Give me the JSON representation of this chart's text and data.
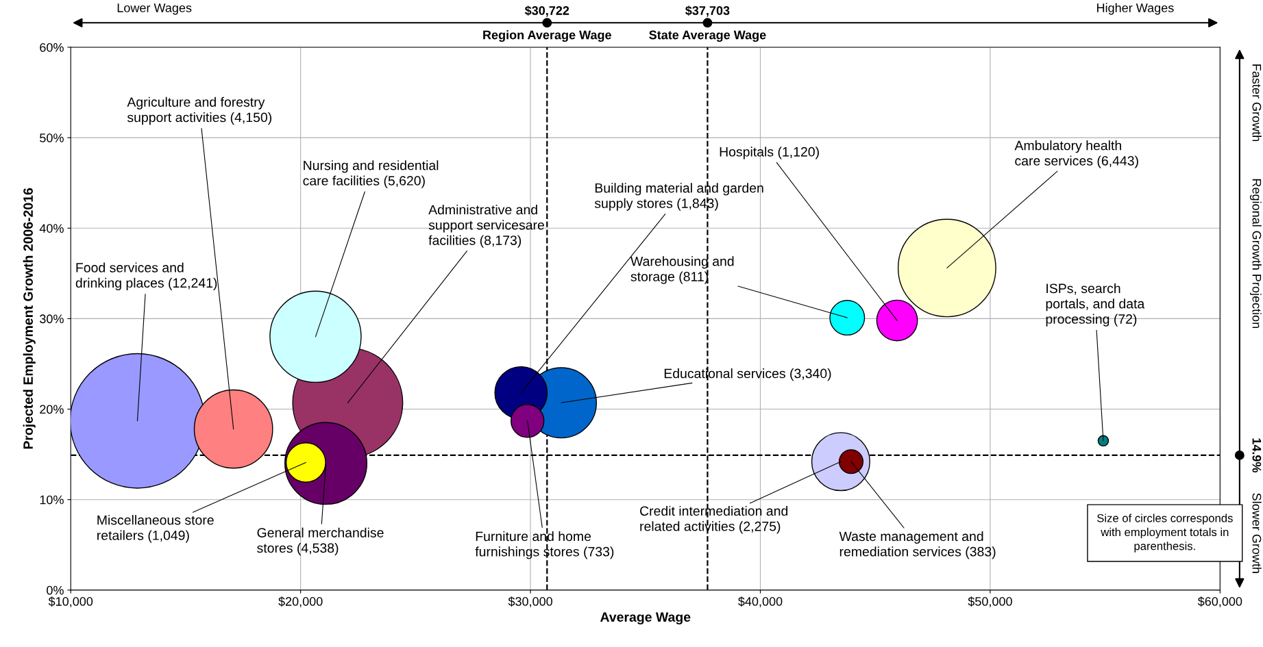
{
  "chart_data": {
    "type": "bubble",
    "xlabel": "Average Wage",
    "ylabel": "Projected Employment Growth 2006-2016",
    "x": [
      12900,
      22050,
      48120,
      20650,
      21100,
      17080,
      31340,
      43500,
      29590,
      45950,
      20230,
      43780,
      29870,
      43950,
      54920
    ],
    "values": [
      18.7,
      20.7,
      35.6,
      28.0,
      14.0,
      17.8,
      20.7,
      14.2,
      21.8,
      29.8,
      14.1,
      30.1,
      18.7,
      14.2,
      16.5
    ],
    "sizes": [
      1,
      0.668,
      0.526,
      0.459,
      0.371,
      0.339,
      0.273,
      0.186,
      0.151,
      0.0915,
      0.0857,
      0.0663,
      0.0599,
      0.0313,
      0.0059
    ],
    "colors": [
      "#9999ff",
      "#993366",
      "#ffffcc",
      "#ccffff",
      "#660066",
      "#ff8080",
      "#0066cc",
      "#ccccff",
      "#000080",
      "#ff00ff",
      "#ffff00",
      "#00ffff",
      "#800080",
      "#800000",
      "#008080"
    ],
    "marker": "circle",
    "xlim": [
      10000,
      60000
    ],
    "ylim": [
      0,
      60
    ],
    "xticks": [
      {
        "value": 10000,
        "label": "$10,000"
      },
      {
        "value": 20000,
        "label": "$20,000"
      },
      {
        "value": 30000,
        "label": "$30,000"
      },
      {
        "value": 40000,
        "label": "$40,000"
      },
      {
        "value": 50000,
        "label": "$50,000"
      },
      {
        "value": 60000,
        "label": "$60,000"
      }
    ],
    "yticks": [
      {
        "value": 0,
        "label": "0%"
      },
      {
        "value": 10,
        "label": "10%"
      },
      {
        "value": 20,
        "label": "20%"
      },
      {
        "value": 30,
        "label": "30%"
      },
      {
        "value": 40,
        "label": "40%"
      },
      {
        "value": 50,
        "label": "50%"
      },
      {
        "value": 60,
        "label": "60%"
      }
    ],
    "grid": true,
    "ref_lines": [
      {
        "axis": "x",
        "value": 30722,
        "label": "Region Average Wage",
        "color": "#000000",
        "line_style": "dashed"
      },
      {
        "axis": "x",
        "value": 37703,
        "label": "State Average Wage",
        "color": "#000000",
        "line_style": "dashed"
      },
      {
        "axis": "y",
        "value": 14.9,
        "label": "14.9%",
        "color": "#000000",
        "line_style": "dashed"
      }
    ],
    "annotations": [
      {
        "text": "Food services and\ndrinking places (12,241)",
        "x": 12900,
        "y": 18.7
      },
      {
        "text": "Administrative and\nsupport servicesare\nfacilities (8,173)",
        "x": 22050,
        "y": 20.7
      },
      {
        "text": "Ambulatory health\ncare services (6,443)",
        "x": 48120,
        "y": 35.6
      },
      {
        "text": "Nursing and residential\ncare facilities (5,620)",
        "x": 20650,
        "y": 28.0
      },
      {
        "text": "General merchandise\nstores (4,538)",
        "x": 21100,
        "y": 14.0
      },
      {
        "text": "Agriculture and forestry\nsupport activities (4,150)",
        "x": 17080,
        "y": 17.8
      },
      {
        "text": "Educational services (3,340)",
        "x": 31340,
        "y": 20.7
      },
      {
        "text": "Credit intermediation and\nrelated activities (2,275)",
        "x": 43500,
        "y": 14.2
      },
      {
        "text": "Building material and garden\nsupply stores (1,843)",
        "x": 29590,
        "y": 21.8
      },
      {
        "text": "Hospitals (1,120)",
        "x": 45950,
        "y": 29.8
      },
      {
        "text": "Miscellaneous store\nretailers (1,049)",
        "x": 20230,
        "y": 14.1
      },
      {
        "text": "Warehousing and\nstorage (811)",
        "x": 43780,
        "y": 30.1
      },
      {
        "text": "Furniture and home\nfurnishings stores (733)",
        "x": 29870,
        "y": 18.7
      },
      {
        "text": "Waste management and\nremediation services (383)",
        "x": 43950,
        "y": 14.2
      },
      {
        "text": "ISPs, search\nportals, and data\nprocessing (72)",
        "x": 54920,
        "y": 16.5
      },
      "$30,722",
      "$37,703",
      "Lower Wages",
      "Higher Wages",
      "Faster Growth",
      "Regional Growth Projection",
      "Slower Growth",
      "Size of circles corresponds\nwith employment totals in\nparenthesis."
    ]
  }
}
